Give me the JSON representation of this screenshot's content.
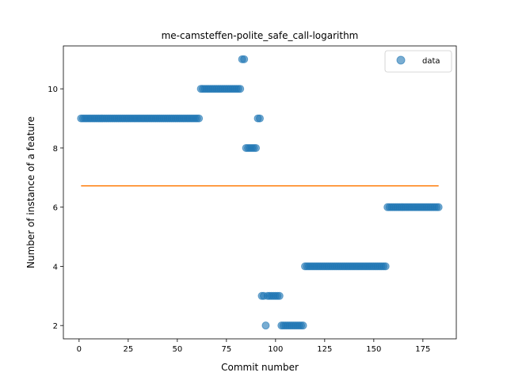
{
  "chart_data": {
    "type": "scatter",
    "title": "me-camsteffen-polite_safe_call-logarithm",
    "xlabel": "Commit number",
    "ylabel": "Number of instance of a feature",
    "xlim": [
      -8,
      192
    ],
    "ylim": [
      1.55,
      11.45
    ],
    "xticks": [
      0,
      25,
      50,
      75,
      100,
      125,
      150,
      175
    ],
    "yticks": [
      2,
      4,
      6,
      8,
      10
    ],
    "legend": {
      "position": "top-right",
      "entries": [
        "data"
      ]
    },
    "colors": {
      "points": "#1f77b4",
      "trend": "#ff7f0e"
    },
    "series": [
      {
        "name": "data",
        "segments": [
          {
            "x": [
              1,
              61
            ],
            "y": 9
          },
          {
            "x": [
              62,
              82
            ],
            "y": 10
          },
          {
            "x": [
              83,
              84
            ],
            "y": 11
          },
          {
            "x": [
              85,
              90
            ],
            "y": 8
          },
          {
            "x": [
              91,
              92
            ],
            "y": 9
          },
          {
            "x": [
              93,
              94
            ],
            "y": 3
          },
          {
            "x": [
              95,
              95
            ],
            "y": 2
          },
          {
            "x": [
              96,
              102
            ],
            "y": 3
          },
          {
            "x": [
              103,
              114
            ],
            "y": 2
          },
          {
            "x": [
              115,
              156
            ],
            "y": 4
          },
          {
            "x": [
              157,
              183
            ],
            "y": 6
          }
        ]
      }
    ],
    "trend_line": {
      "x": [
        1,
        183
      ],
      "y": [
        6.72,
        6.72
      ]
    }
  }
}
